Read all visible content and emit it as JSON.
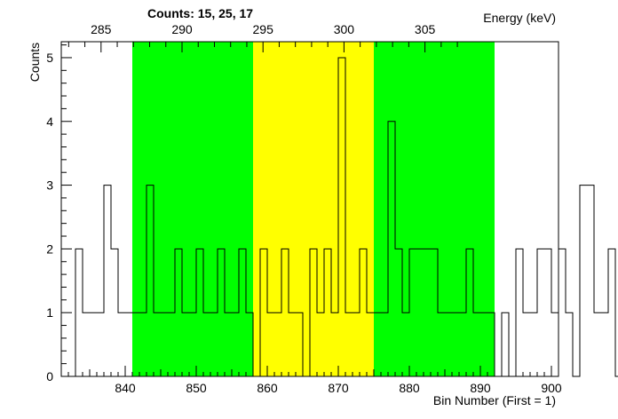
{
  "chart_data": {
    "type": "histogram",
    "title": "Counts:   15,   25,   17",
    "xlabel": "Bin Number (First = 1)",
    "ylabel": "Counts",
    "x2label": "Energy (keV)",
    "xlim": [
      831,
      901
    ],
    "ylim": [
      0,
      5.25
    ],
    "x_ticks": [
      840,
      850,
      860,
      870,
      880,
      890,
      900
    ],
    "y_ticks": [
      0,
      1,
      2,
      3,
      4,
      5
    ],
    "energy_ticks": [
      285,
      290,
      295,
      300,
      305
    ],
    "energy_axis_map": {
      "bin_at_285": 836.6,
      "bins_per_keV": 2.28
    },
    "bin_start": 833,
    "bin_width": 1,
    "values": [
      2,
      1,
      1,
      1,
      3,
      2,
      1,
      1,
      1,
      1,
      3,
      1,
      1,
      1,
      2,
      1,
      1,
      2,
      1,
      1,
      2,
      1,
      1,
      2,
      1,
      0,
      2,
      1,
      1,
      2,
      1,
      1,
      0,
      2,
      1,
      2,
      1,
      5,
      1,
      1,
      2,
      1,
      1,
      1,
      4,
      2,
      1,
      2,
      2,
      2,
      2,
      1,
      1,
      1,
      1,
      2,
      1,
      1,
      1,
      0,
      1,
      0,
      2,
      1,
      1,
      2,
      2,
      1,
      2,
      1,
      0,
      3,
      3,
      1,
      1,
      2,
      0
    ],
    "regions": [
      {
        "name": "left",
        "from": 841,
        "to": 858,
        "color": "#00ff00"
      },
      {
        "name": "center",
        "from": 858,
        "to": 875,
        "color": "#ffff00"
      },
      {
        "name": "right",
        "from": 875,
        "to": 892,
        "color": "#00ff00"
      }
    ],
    "grid": false,
    "colors": {
      "line": "#000000",
      "background": "#ffffff"
    }
  }
}
